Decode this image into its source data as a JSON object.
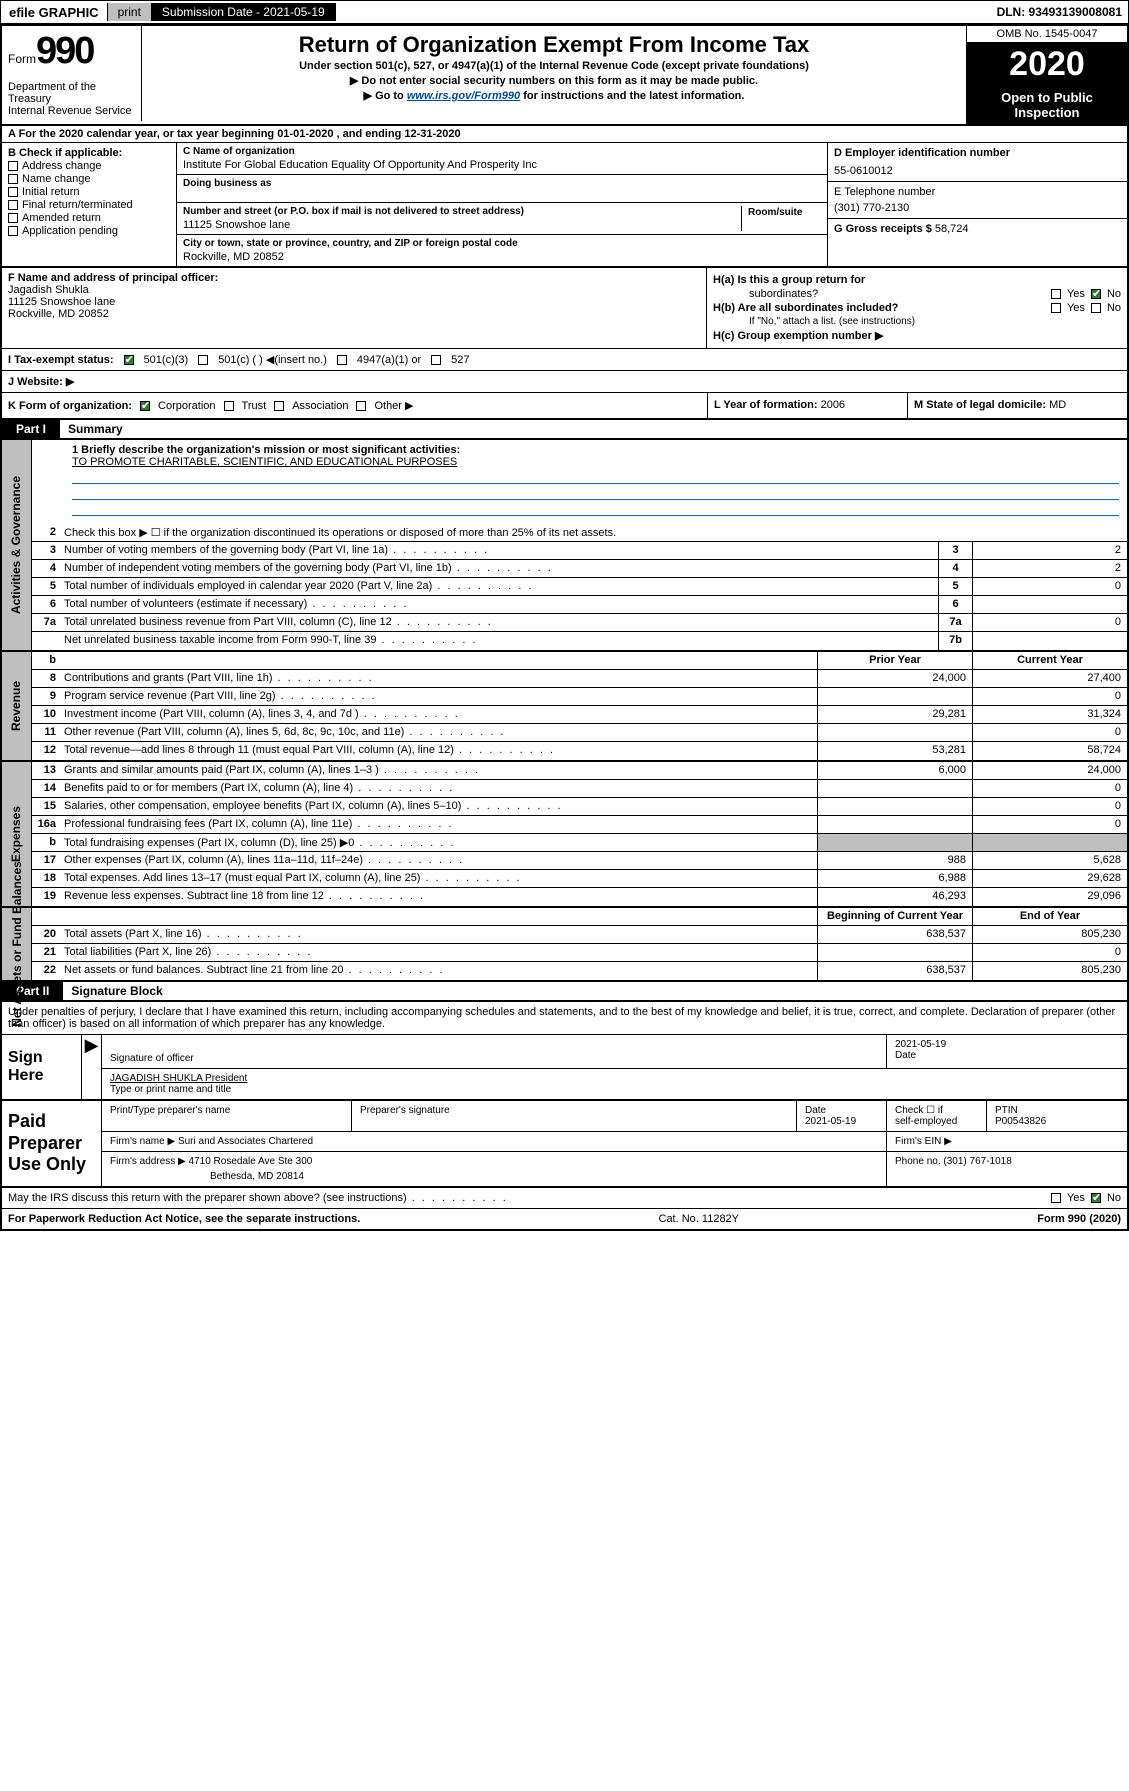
{
  "topbar": {
    "efile": "efile GRAPHIC",
    "print": "print",
    "sub_label": "Submission Date - 2021-05-19",
    "dln": "DLN: 93493139008081"
  },
  "header": {
    "form_word": "Form",
    "form_num": "990",
    "dept1": "Department of the Treasury",
    "dept2": "Internal Revenue Service",
    "title": "Return of Organization Exempt From Income Tax",
    "sub1": "Under section 501(c), 527, or 4947(a)(1) of the Internal Revenue Code (except private foundations)",
    "sub2": "▶ Do not enter social security numbers on this form as it may be made public.",
    "sub3_pre": "▶ Go to ",
    "sub3_link": "www.irs.gov/Form990",
    "sub3_post": " for instructions and the latest information.",
    "omb": "OMB No. 1545-0047",
    "year": "2020",
    "open1": "Open to Public",
    "open2": "Inspection"
  },
  "line_a": "A For the 2020 calendar year, or tax year beginning 01-01-2020    , and ending 12-31-2020",
  "box_b": {
    "header": "B Check if applicable:",
    "items": [
      "Address change",
      "Name change",
      "Initial return",
      "Final return/terminated",
      "Amended return",
      "Application pending"
    ]
  },
  "box_c": {
    "name_lbl": "C Name of organization",
    "name": "Institute For Global Education Equality Of Opportunity And Prosperity Inc",
    "dba_lbl": "Doing business as",
    "addr_lbl": "Number and street (or P.O. box if mail is not delivered to street address)",
    "room_lbl": "Room/suite",
    "addr": "11125 Snowshoe lane",
    "city_lbl": "City or town, state or province, country, and ZIP or foreign postal code",
    "city": "Rockville, MD  20852"
  },
  "box_d": {
    "lbl": "D Employer identification number",
    "val": "55-0610012"
  },
  "box_e": {
    "lbl": "E Telephone number",
    "val": "(301) 770-2130"
  },
  "box_g": {
    "lbl": "G Gross receipts $",
    "val": "58,724"
  },
  "box_f": {
    "lbl": "F  Name and address of principal officer:",
    "name": "Jagadish Shukla",
    "addr1": "11125 Snowshoe lane",
    "addr2": "Rockville, MD  20852"
  },
  "box_h": {
    "a_lbl": "H(a)  Is this a group return for",
    "a_lbl2": "subordinates?",
    "b_lbl": "H(b)  Are all subordinates included?",
    "b_note": "If \"No,\" attach a list. (see instructions)",
    "c_lbl": "H(c)  Group exemption number ▶",
    "yes": "Yes",
    "no": "No"
  },
  "row_i": {
    "lbl": "I    Tax-exempt status:",
    "opts": [
      "501(c)(3)",
      "501(c) (  ) ◀(insert no.)",
      "4947(a)(1) or",
      "527"
    ]
  },
  "row_j": {
    "lbl": "J   Website: ▶"
  },
  "row_k": {
    "lbl": "K Form of organization:",
    "opts": [
      "Corporation",
      "Trust",
      "Association",
      "Other ▶"
    ],
    "l_lbl": "L Year of formation:",
    "l_val": "2006",
    "m_lbl": "M State of legal domicile:",
    "m_val": "MD"
  },
  "part1": {
    "num": "Part I",
    "title": "Summary"
  },
  "summary": {
    "q1_lbl": "1  Briefly describe the organization's mission or most significant activities:",
    "q1_val": "TO PROMOTE CHARITABLE, SCIENTIFIC, AND EDUCATIONAL PURPOSES",
    "q2": "Check this box ▶ ☐  if the organization discontinued its operations or disposed of more than 25% of its net assets.",
    "lines_gov": [
      {
        "n": "3",
        "d": "Number of voting members of the governing body (Part VI, line 1a)",
        "c": "3",
        "v": "2"
      },
      {
        "n": "4",
        "d": "Number of independent voting members of the governing body (Part VI, line 1b)",
        "c": "4",
        "v": "2"
      },
      {
        "n": "5",
        "d": "Total number of individuals employed in calendar year 2020 (Part V, line 2a)",
        "c": "5",
        "v": "0"
      },
      {
        "n": "6",
        "d": "Total number of volunteers (estimate if necessary)",
        "c": "6",
        "v": ""
      },
      {
        "n": "7a",
        "d": "Total unrelated business revenue from Part VIII, column (C), line 12",
        "c": "7a",
        "v": "0"
      },
      {
        "n": "",
        "d": "Net unrelated business taxable income from Form 990-T, line 39",
        "c": "7b",
        "v": ""
      }
    ],
    "hdr_b": "b",
    "col_prior": "Prior Year",
    "col_curr": "Current Year",
    "lines_rev": [
      {
        "n": "8",
        "d": "Contributions and grants (Part VIII, line 1h)",
        "p": "24,000",
        "c": "27,400"
      },
      {
        "n": "9",
        "d": "Program service revenue (Part VIII, line 2g)",
        "p": "",
        "c": "0"
      },
      {
        "n": "10",
        "d": "Investment income (Part VIII, column (A), lines 3, 4, and 7d )",
        "p": "29,281",
        "c": "31,324"
      },
      {
        "n": "11",
        "d": "Other revenue (Part VIII, column (A), lines 5, 6d, 8c, 9c, 10c, and 11e)",
        "p": "",
        "c": "0"
      },
      {
        "n": "12",
        "d": "Total revenue—add lines 8 through 11 (must equal Part VIII, column (A), line 12)",
        "p": "53,281",
        "c": "58,724"
      }
    ],
    "lines_exp": [
      {
        "n": "13",
        "d": "Grants and similar amounts paid (Part IX, column (A), lines 1–3 )",
        "p": "6,000",
        "c": "24,000"
      },
      {
        "n": "14",
        "d": "Benefits paid to or for members (Part IX, column (A), line 4)",
        "p": "",
        "c": "0"
      },
      {
        "n": "15",
        "d": "Salaries, other compensation, employee benefits (Part IX, column (A), lines 5–10)",
        "p": "",
        "c": "0"
      },
      {
        "n": "16a",
        "d": "Professional fundraising fees (Part IX, column (A), line 11e)",
        "p": "",
        "c": "0"
      },
      {
        "n": "b",
        "d": "Total fundraising expenses (Part IX, column (D), line 25) ▶0",
        "p": "SHADE",
        "c": "SHADE"
      },
      {
        "n": "17",
        "d": "Other expenses (Part IX, column (A), lines 11a–11d, 11f–24e)",
        "p": "988",
        "c": "5,628"
      },
      {
        "n": "18",
        "d": "Total expenses. Add lines 13–17 (must equal Part IX, column (A), line 25)",
        "p": "6,988",
        "c": "29,628"
      },
      {
        "n": "19",
        "d": "Revenue less expenses. Subtract line 18 from line 12",
        "p": "46,293",
        "c": "29,096"
      }
    ],
    "col_beg": "Beginning of Current Year",
    "col_end": "End of Year",
    "lines_net": [
      {
        "n": "20",
        "d": "Total assets (Part X, line 16)",
        "p": "638,537",
        "c": "805,230"
      },
      {
        "n": "21",
        "d": "Total liabilities (Part X, line 26)",
        "p": "",
        "c": "0"
      },
      {
        "n": "22",
        "d": "Net assets or fund balances. Subtract line 21 from line 20",
        "p": "638,537",
        "c": "805,230"
      }
    ],
    "side_gov": "Activities & Governance",
    "side_rev": "Revenue",
    "side_exp": "Expenses",
    "side_net": "Net Assets or Fund Balances"
  },
  "part2": {
    "num": "Part II",
    "title": "Signature Block"
  },
  "sig": {
    "decl": "Under penalties of perjury, I declare that I have examined this return, including accompanying schedules and statements, and to the best of my knowledge and belief, it is true, correct, and complete. Declaration of preparer (other than officer) is based on all information of which preparer has any knowledge.",
    "sign_here": "Sign Here",
    "sig_officer": "Signature of officer",
    "date_lbl": "Date",
    "date_val": "2021-05-19",
    "name_title": "JAGADISH SHUKLA President",
    "type_print": "Type or print name and title"
  },
  "paid": {
    "label": "Paid Preparer Use Only",
    "h1": "Print/Type preparer's name",
    "h2": "Preparer's signature",
    "h3": "Date",
    "h3v": "2021-05-19",
    "h4a": "Check ☐ if",
    "h4b": "self-employed",
    "h5": "PTIN",
    "h5v": "P00543826",
    "firm_name_lbl": "Firm's name      ▶",
    "firm_name": "Suri and Associates Chartered",
    "firm_ein_lbl": "Firm's EIN ▶",
    "firm_addr_lbl": "Firm's address ▶",
    "firm_addr1": "4710 Rosedale Ave Ste 300",
    "firm_addr2": "Bethesda, MD  20814",
    "phone_lbl": "Phone no.",
    "phone": "(301) 767-1018"
  },
  "discuss": {
    "q": "May the IRS discuss this return with the preparer shown above? (see instructions)",
    "yes": "Yes",
    "no": "No"
  },
  "footer": {
    "left": "For Paperwork Reduction Act Notice, see the separate instructions.",
    "mid": "Cat. No. 11282Y",
    "right": "Form 990 (2020)"
  }
}
